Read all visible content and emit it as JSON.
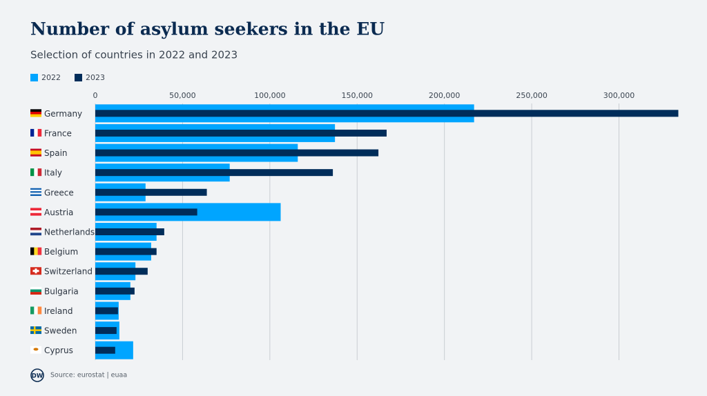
{
  "chart_data": {
    "type": "bar",
    "orientation": "horizontal",
    "title": "Number of asylum seekers in the EU",
    "subtitle": "Selection of countries in 2022 and 2023",
    "categories": [
      "Germany",
      "France",
      "Spain",
      "Italy",
      "Greece",
      "Austria",
      "Netherlands",
      "Belgium",
      "Switzerland",
      "Bulgaria",
      "Ireland",
      "Sweden",
      "Cyprus"
    ],
    "series": [
      {
        "name": "2022",
        "color": "#00a5ff",
        "values": [
          217000,
          137300,
          116000,
          77000,
          28800,
          106200,
          35100,
          32000,
          23000,
          20100,
          13400,
          13800,
          21700
        ]
      },
      {
        "name": "2023",
        "color": "#002d5a",
        "values": [
          334000,
          166900,
          162200,
          136100,
          63900,
          58400,
          39500,
          35100,
          30000,
          22500,
          13000,
          12200,
          11400
        ]
      }
    ],
    "xlim": [
      0,
      335000
    ],
    "xticks": [
      0,
      {
        "value": 50000,
        "label": "50,000"
      },
      {
        "value": 100000,
        "label": "100,000"
      },
      {
        "value": 150000,
        "label": "150,000"
      },
      {
        "value": 200000,
        "label": "200,000"
      },
      {
        "value": 250000,
        "label": "250,000"
      },
      {
        "value": 300000,
        "label": "300,000"
      }
    ],
    "grid": true,
    "legend": "top-left",
    "logo": "DW",
    "source": "Source: eurostat | euaa"
  }
}
